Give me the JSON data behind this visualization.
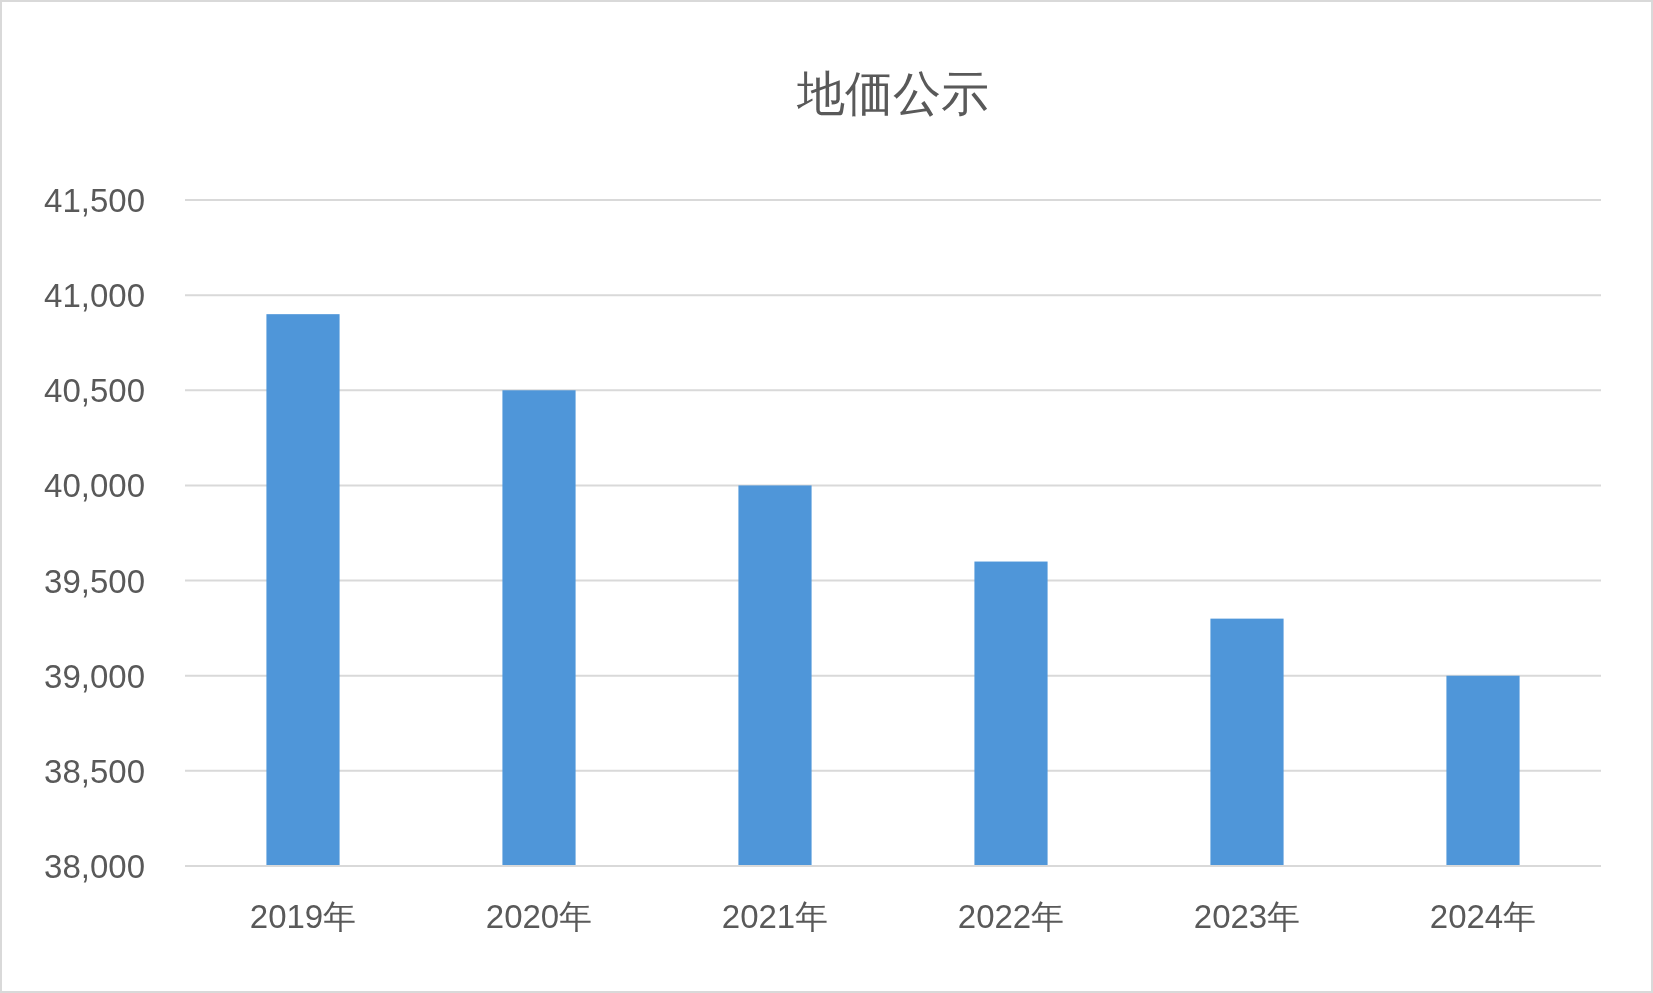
{
  "chart_data": {
    "type": "bar",
    "title": "地価公示",
    "categories": [
      "2019年",
      "2020年",
      "2021年",
      "2022年",
      "2023年",
      "2024年"
    ],
    "values": [
      40900,
      40500,
      40000,
      39600,
      39300,
      39000
    ],
    "color": "#4f96d9",
    "ylim": [
      38000,
      41500
    ],
    "yticks": [
      {
        "value": 38000,
        "label": "38,000"
      },
      {
        "value": 38500,
        "label": "38,500"
      },
      {
        "value": 39000,
        "label": "39,000"
      },
      {
        "value": 39500,
        "label": "39,500"
      },
      {
        "value": 40000,
        "label": "40,000"
      },
      {
        "value": 40500,
        "label": "40,500"
      },
      {
        "value": 41000,
        "label": "41,000"
      },
      {
        "value": 41500,
        "label": "41,500"
      }
    ],
    "grid": "y"
  }
}
